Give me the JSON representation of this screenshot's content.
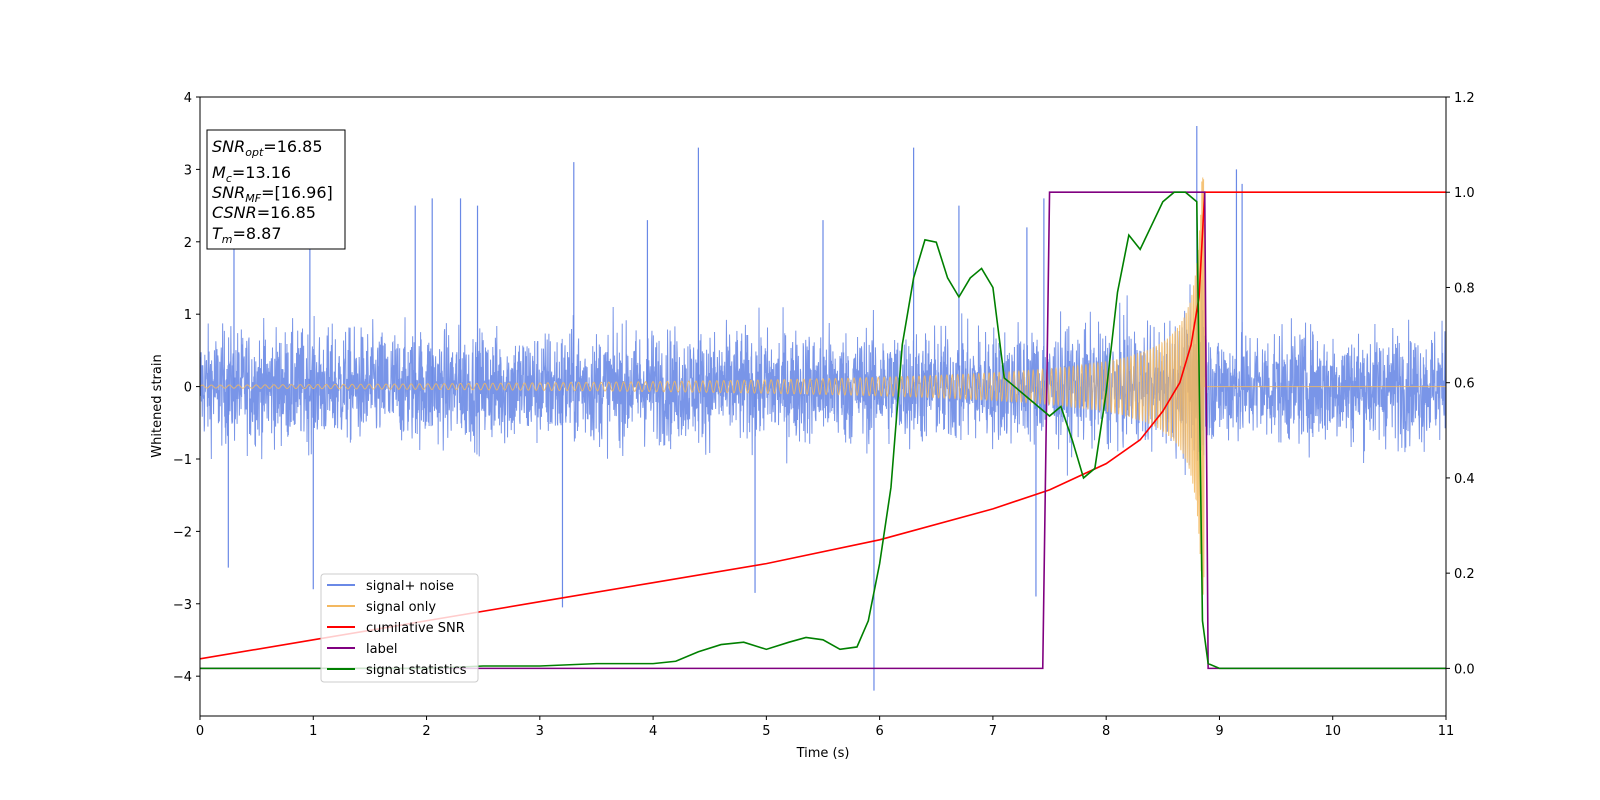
{
  "chart_data": {
    "type": "line",
    "xlabel": "Time (s)",
    "ylabel": "Whitened strain",
    "xlim": [
      0,
      11
    ],
    "ylim": [
      -4.55,
      4
    ],
    "y2lim": [
      -0.1,
      1.2
    ],
    "x_ticks": [
      0,
      1,
      2,
      3,
      4,
      5,
      6,
      7,
      8,
      9,
      10,
      11
    ],
    "x_tick_labels": [
      "0",
      "1",
      "2",
      "3",
      "4",
      "5",
      "6",
      "7",
      "8",
      "9",
      "10",
      "11"
    ],
    "y_ticks": [
      -4,
      -3,
      -2,
      -1,
      0,
      1,
      2,
      3,
      4
    ],
    "y_tick_labels": [
      "−4",
      "−3",
      "−2",
      "−1",
      "0",
      "1",
      "2",
      "3",
      "4"
    ],
    "y2_ticks": [
      0.0,
      0.2,
      0.4,
      0.6,
      0.8,
      1.0,
      1.2
    ],
    "y2_tick_labels": [
      "0.0",
      "0.2",
      "0.4",
      "0.6",
      "0.8",
      "1.0",
      "1.2"
    ],
    "legend_placement": "lower-left",
    "grid": false,
    "colors": {
      "signal_noise": "#6a89e6",
      "signal_only": "#f3b860",
      "cumulative_snr": "#ff0000",
      "label": "#800080",
      "signal_statistics": "#008000"
    },
    "info_box": {
      "snr_opt": {
        "symbol": "SNR",
        "sub": "opt",
        "value": "=16.85"
      },
      "mc": {
        "symbol": "M",
        "sub": "c",
        "value": "=13.16"
      },
      "snr_mf": {
        "symbol": "SNR",
        "sub": "MF",
        "value": "=[16.96]"
      },
      "csnr": {
        "symbol": "CSNR",
        "value": "=16.85"
      },
      "tm": {
        "symbol": "T",
        "sub": "m",
        "value": "=8.87"
      }
    },
    "series": [
      {
        "name": "signal+ noise",
        "axis": "left",
        "description_of_shape": "noise band roughly ±1.5 with spikes to ±3",
        "spike_peaks": [
          [
            0.3,
            2.4
          ],
          [
            0.97,
            2.6
          ],
          [
            1.9,
            2.5
          ],
          [
            2.05,
            2.6
          ],
          [
            2.3,
            2.6
          ],
          [
            2.45,
            2.5
          ],
          [
            3.3,
            3.1
          ],
          [
            3.95,
            2.3
          ],
          [
            4.4,
            3.3
          ],
          [
            5.5,
            2.3
          ],
          [
            5.95,
            -4.2
          ],
          [
            6.3,
            3.3
          ],
          [
            6.7,
            2.5
          ],
          [
            7.3,
            2.2
          ],
          [
            7.38,
            -2.9
          ],
          [
            7.45,
            2.6
          ],
          [
            8.8,
            3.6
          ],
          [
            9.15,
            3.0
          ],
          [
            9.2,
            2.8
          ],
          [
            3.2,
            -3.05
          ],
          [
            4.9,
            -2.85
          ],
          [
            0.25,
            -2.5
          ],
          [
            1.0,
            -2.8
          ]
        ]
      },
      {
        "name": "signal only",
        "axis": "left",
        "description_of_shape": "chirp growing from amplitude 0.02 at t=0 to ~2.9 at t=8.87, then 0",
        "merger_time": 8.87,
        "peak_amplitude": 2.9
      },
      {
        "name": "cumilative SNR",
        "axis": "right",
        "x": [
          0,
          1,
          2,
          3,
          4,
          5,
          6,
          7,
          7.5,
          8,
          8.3,
          8.5,
          8.65,
          8.75,
          8.82,
          8.87,
          11
        ],
        "y": [
          0.02,
          0.06,
          0.1,
          0.14,
          0.18,
          0.22,
          0.27,
          0.335,
          0.375,
          0.43,
          0.48,
          0.54,
          0.6,
          0.68,
          0.78,
          1.0,
          1.0
        ]
      },
      {
        "name": "label",
        "axis": "right",
        "x": [
          0,
          7.44,
          7.5,
          8.87,
          8.9,
          11
        ],
        "y": [
          0,
          0,
          1,
          1,
          0,
          0
        ]
      },
      {
        "name": "signal statistics",
        "axis": "right",
        "x": [
          0,
          1,
          2,
          2.5,
          3,
          3.5,
          4,
          4.2,
          4.4,
          4.6,
          4.8,
          5.0,
          5.2,
          5.35,
          5.5,
          5.65,
          5.8,
          5.9,
          6.0,
          6.1,
          6.2,
          6.3,
          6.4,
          6.5,
          6.6,
          6.7,
          6.8,
          6.9,
          7.0,
          7.1,
          7.2,
          7.35,
          7.5,
          7.6,
          7.7,
          7.8,
          7.9,
          8.0,
          8.1,
          8.2,
          8.3,
          8.4,
          8.5,
          8.6,
          8.7,
          8.8,
          8.85,
          8.9,
          9.0,
          11
        ],
        "y": [
          0.0,
          0.0,
          0.0,
          0.005,
          0.005,
          0.01,
          0.01,
          0.015,
          0.035,
          0.05,
          0.055,
          0.04,
          0.055,
          0.065,
          0.06,
          0.04,
          0.045,
          0.1,
          0.22,
          0.38,
          0.68,
          0.82,
          0.9,
          0.895,
          0.82,
          0.78,
          0.82,
          0.84,
          0.8,
          0.61,
          0.59,
          0.56,
          0.53,
          0.55,
          0.48,
          0.4,
          0.42,
          0.58,
          0.79,
          0.91,
          0.88,
          0.93,
          0.98,
          1.0,
          1.0,
          0.98,
          0.1,
          0.01,
          0.0,
          0.0
        ]
      }
    ]
  },
  "legend": {
    "items": [
      {
        "label": "signal+ noise",
        "color": "#6a89e6"
      },
      {
        "label": "signal only",
        "color": "#f3b860"
      },
      {
        "label": "cumilative SNR",
        "color": "#ff0000"
      },
      {
        "label": "label",
        "color": "#800080"
      },
      {
        "label": "signal statistics",
        "color": "#008000"
      }
    ]
  }
}
